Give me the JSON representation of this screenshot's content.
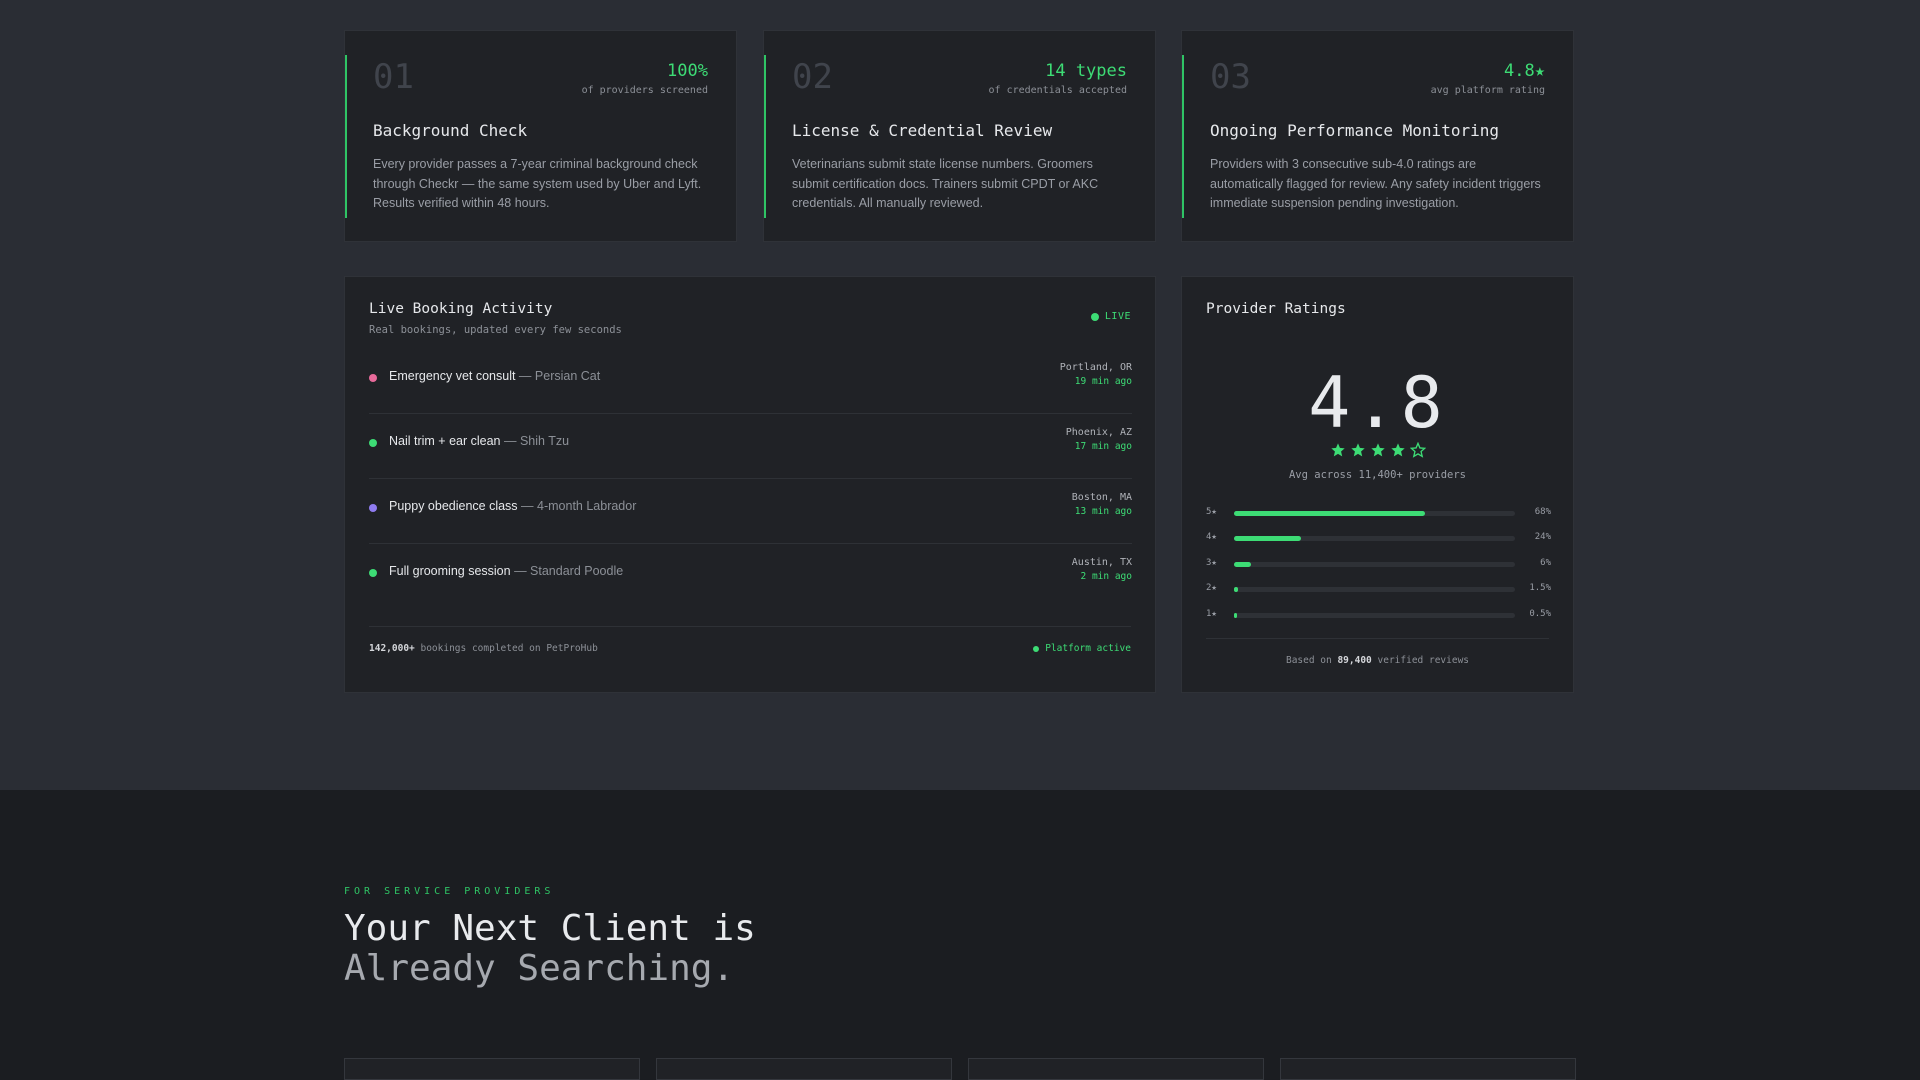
{
  "features": [
    {
      "num": "01",
      "stat_value": "100%",
      "stat_label": "of providers screened",
      "title": "Background Check",
      "desc": "Every provider passes a 7-year criminal background check through Checkr — the same system used by Uber and Lyft. Results verified within 48 hours."
    },
    {
      "num": "02",
      "stat_value": "14 types",
      "stat_label": "of credentials accepted",
      "title": "License & Credential Review",
      "desc": "Veterinarians submit state license numbers. Groomers submit certification docs. Trainers submit CPDT or AKC credentials. All manually reviewed."
    },
    {
      "num": "03",
      "stat_value": "4.8★",
      "stat_label": "avg platform rating",
      "title": "Ongoing Performance Monitoring",
      "desc": "Providers with 3 consecutive sub-4.0 ratings are automatically flagged for review. Any safety incident triggers immediate suspension pending investigation."
    }
  ],
  "bookings_panel": {
    "title": "Live Booking Activity",
    "subtitle": "Real bookings, updated every few seconds",
    "live_label": "LIVE",
    "items": [
      {
        "service": "Emergency vet consult",
        "pet": " — Persian Cat",
        "location": "Portland, OR",
        "time": "19 min ago",
        "dot_color": "#e86a9a"
      },
      {
        "service": "Nail trim + ear clean",
        "pet": " — Shih Tzu",
        "location": "Phoenix, AZ",
        "time": "17 min ago",
        "dot_color": "#3ddc75"
      },
      {
        "service": "Puppy obedience class",
        "pet": " — 4-month Labrador",
        "location": "Boston, MA",
        "time": "13 min ago",
        "dot_color": "#8f7cf0"
      },
      {
        "service": "Full grooming session",
        "pet": " — Standard Poodle",
        "location": "Austin, TX",
        "time": "2 min ago",
        "dot_color": "#3ddc75"
      }
    ],
    "footer_count": "142,000+",
    "footer_text": " bookings completed on PetProHub",
    "footer_status": "Platform active"
  },
  "ratings_panel": {
    "title": "Provider Ratings",
    "rating": "4.8",
    "stars_filled": 4,
    "stars_total": 5,
    "avg_label": "Avg across 11,400+ providers",
    "distribution": [
      {
        "label": "5★",
        "pct_label": "68%",
        "pct": 68
      },
      {
        "label": "4★",
        "pct_label": "24%",
        "pct": 24
      },
      {
        "label": "3★",
        "pct_label": "6%",
        "pct": 6
      },
      {
        "label": "2★",
        "pct_label": "1.5%",
        "pct": 1.5
      },
      {
        "label": "1★",
        "pct_label": "0.5%",
        "pct": 0.5
      }
    ],
    "footer_prefix": "Based on ",
    "footer_count": "89,400",
    "footer_suffix": " verified reviews"
  },
  "providers_section": {
    "eyebrow": "FOR SERVICE PROVIDERS",
    "headline_line1": "Your Next Client is",
    "headline_line2": "Already Searching."
  },
  "colors": {
    "accent": "#3ddc75",
    "background": "#2a2d34",
    "card": "#202226",
    "lower_background": "#1b1d21"
  }
}
